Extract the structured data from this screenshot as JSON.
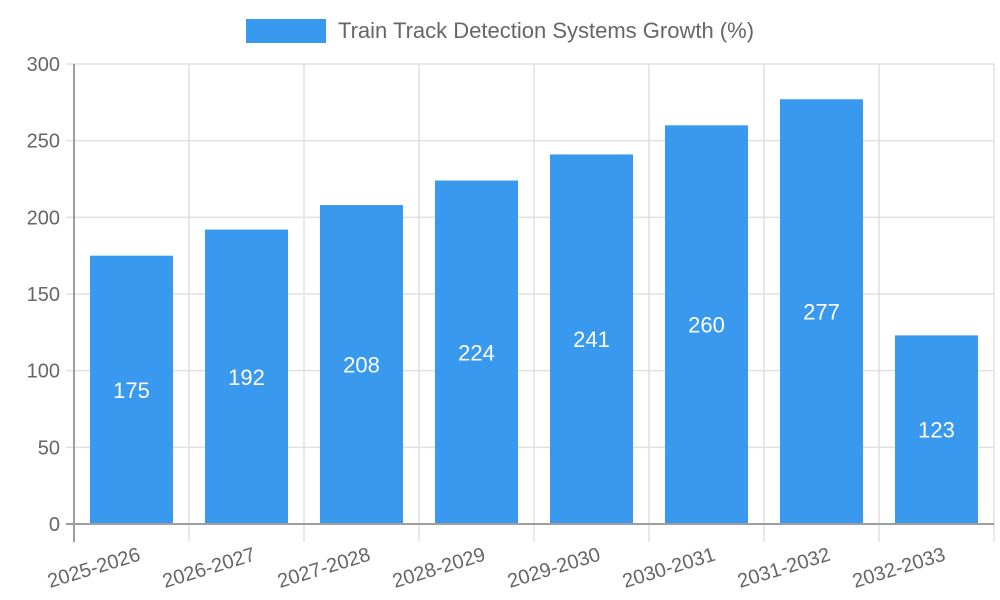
{
  "legend": {
    "label": "Train Track Detection Systems Growth (%)",
    "color": "#3899ee"
  },
  "chart_data": {
    "type": "bar",
    "title": "",
    "xlabel": "",
    "ylabel": "",
    "categories": [
      "2025-2026",
      "2026-2027",
      "2027-2028",
      "2028-2029",
      "2029-2030",
      "2030-2031",
      "2031-2032",
      "2032-2033"
    ],
    "series": [
      {
        "name": "Train Track Detection Systems Growth (%)",
        "values": [
          175,
          192,
          208,
          224,
          241,
          260,
          277,
          123
        ],
        "color": "#3899ee"
      }
    ],
    "ylim": [
      0,
      300
    ],
    "yticks": [
      0,
      50,
      100,
      150,
      200,
      250,
      300
    ],
    "grid": true,
    "legend_position": "top",
    "data_labels": true
  }
}
